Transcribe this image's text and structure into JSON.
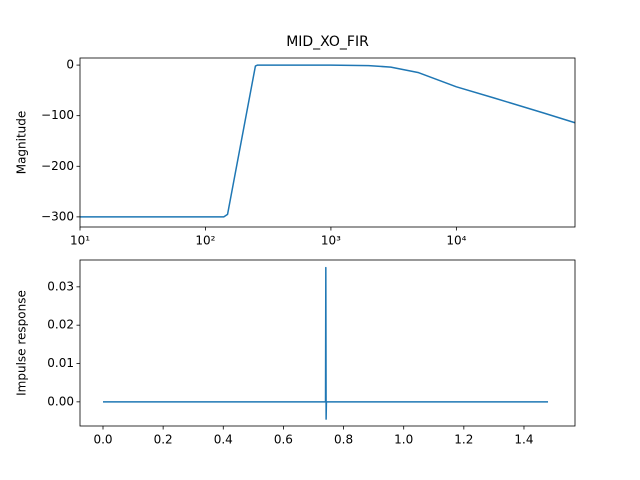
{
  "chart_data": [
    {
      "type": "line",
      "title": "MID_XO_FIR",
      "ylabel": "Magnitude",
      "xscale": "log",
      "color": "#1f77b4",
      "x": [
        10,
        140,
        150,
        250,
        260,
        1000,
        2000,
        3000,
        5000,
        10000,
        20000,
        50000,
        88200
      ],
      "values": [
        -300,
        -300,
        -295,
        -2,
        0,
        0,
        -1,
        -4,
        -15,
        -43,
        -65,
        -95,
        -114
      ],
      "xlim": [
        10,
        88200
      ],
      "ylim": [
        -320,
        14
      ],
      "xticks": [
        {
          "value": 10,
          "label": "10¹"
        },
        {
          "value": 100,
          "label": "10²"
        },
        {
          "value": 1000,
          "label": "10³"
        },
        {
          "value": 10000,
          "label": "10⁴"
        }
      ],
      "yticks": [
        {
          "value": 0,
          "label": "0"
        },
        {
          "value": -100,
          "label": "−100"
        },
        {
          "value": -200,
          "label": "−200"
        },
        {
          "value": -300,
          "label": "−300"
        }
      ]
    },
    {
      "type": "line",
      "ylabel": "Impulse response",
      "color": "#1f77b4",
      "x": [
        0,
        0.74,
        0.741,
        0.742,
        0.743,
        1.48
      ],
      "values": [
        0,
        0,
        0.035,
        -0.0045,
        0,
        0
      ],
      "xlim": [
        -0.0765,
        1.5697
      ],
      "ylim": [
        -0.0063,
        0.037
      ],
      "xticks": [
        {
          "value": 0,
          "label": "0.0"
        },
        {
          "value": 0.2,
          "label": "0.2"
        },
        {
          "value": 0.4,
          "label": "0.4"
        },
        {
          "value": 0.6,
          "label": "0.6"
        },
        {
          "value": 0.8,
          "label": "0.8"
        },
        {
          "value": 1.0,
          "label": "1.0"
        },
        {
          "value": 1.2,
          "label": "1.2"
        },
        {
          "value": 1.4,
          "label": "1.4"
        }
      ],
      "yticks": [
        {
          "value": 0,
          "label": "0.00"
        },
        {
          "value": 0.01,
          "label": "0.01"
        },
        {
          "value": 0.02,
          "label": "0.02"
        },
        {
          "value": 0.03,
          "label": "0.03"
        }
      ]
    }
  ]
}
